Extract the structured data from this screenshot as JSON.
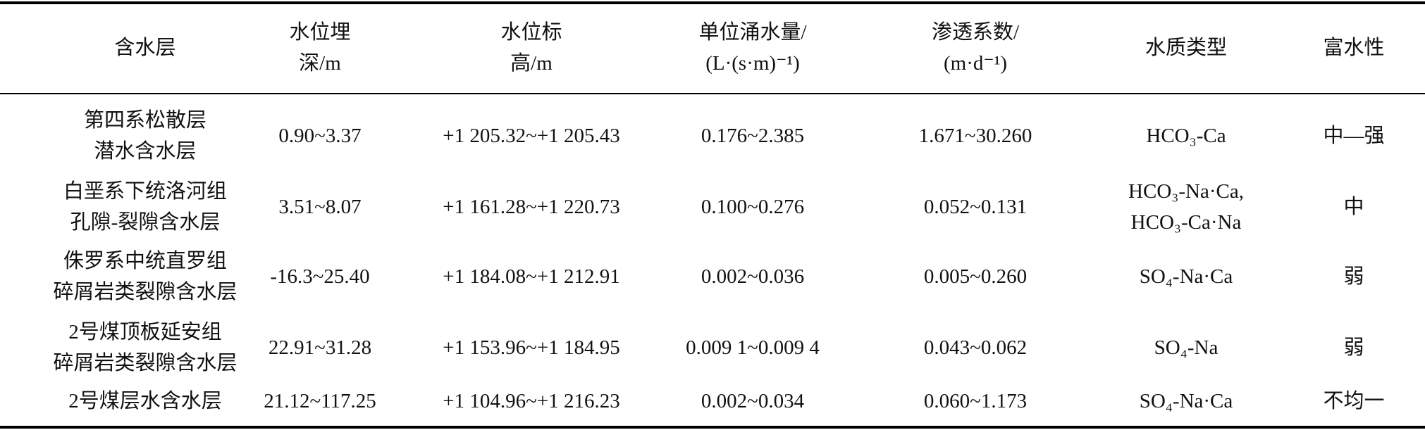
{
  "table": {
    "header": [
      [
        "含水层"
      ],
      [
        "水位埋",
        "深/m"
      ],
      [
        "水位标",
        "高/m"
      ],
      [
        "单位涌水量/",
        "(L·(s·m)⁻¹)"
      ],
      [
        "渗透系数/",
        "(m·d⁻¹)"
      ],
      [
        "水质类型"
      ],
      [
        "富水性"
      ]
    ],
    "rows": [
      [
        [
          "第四系松散层",
          "潜水含水层"
        ],
        [
          "0.90~3.37"
        ],
        [
          "+1 205.32~+1 205.43"
        ],
        [
          "0.176~2.385"
        ],
        [
          "1.671~30.260"
        ],
        [
          "HCO₃-Ca"
        ],
        [
          "中—强"
        ]
      ],
      [
        [
          "白垩系下统洛河组",
          "孔隙-裂隙含水层"
        ],
        [
          "3.51~8.07"
        ],
        [
          "+1 161.28~+1 220.73"
        ],
        [
          "0.100~0.276"
        ],
        [
          "0.052~0.131"
        ],
        [
          "HCO₃-Na·Ca,",
          "HCO₃-Ca·Na"
        ],
        [
          "中"
        ]
      ],
      [
        [
          "侏罗系中统直罗组",
          "碎屑岩类裂隙含水层"
        ],
        [
          "-16.3~25.40"
        ],
        [
          "+1 184.08~+1 212.91"
        ],
        [
          "0.002~0.036"
        ],
        [
          "0.005~0.260"
        ],
        [
          "SO₄-Na·Ca"
        ],
        [
          "弱"
        ]
      ],
      [
        [
          "2号煤顶板延安组",
          "碎屑岩类裂隙含水层"
        ],
        [
          "22.91~31.28"
        ],
        [
          "+1 153.96~+1 184.95"
        ],
        [
          "0.009 1~0.009 4"
        ],
        [
          "0.043~0.062"
        ],
        [
          "SO₄-Na"
        ],
        [
          "弱"
        ]
      ],
      [
        [
          "2号煤层水含水层"
        ],
        [
          "21.12~117.25"
        ],
        [
          "+1 104.96~+1 216.23"
        ],
        [
          "0.002~0.034"
        ],
        [
          "0.060~1.173"
        ],
        [
          "SO₄-Na·Ca"
        ],
        [
          "不均一"
        ]
      ]
    ]
  }
}
